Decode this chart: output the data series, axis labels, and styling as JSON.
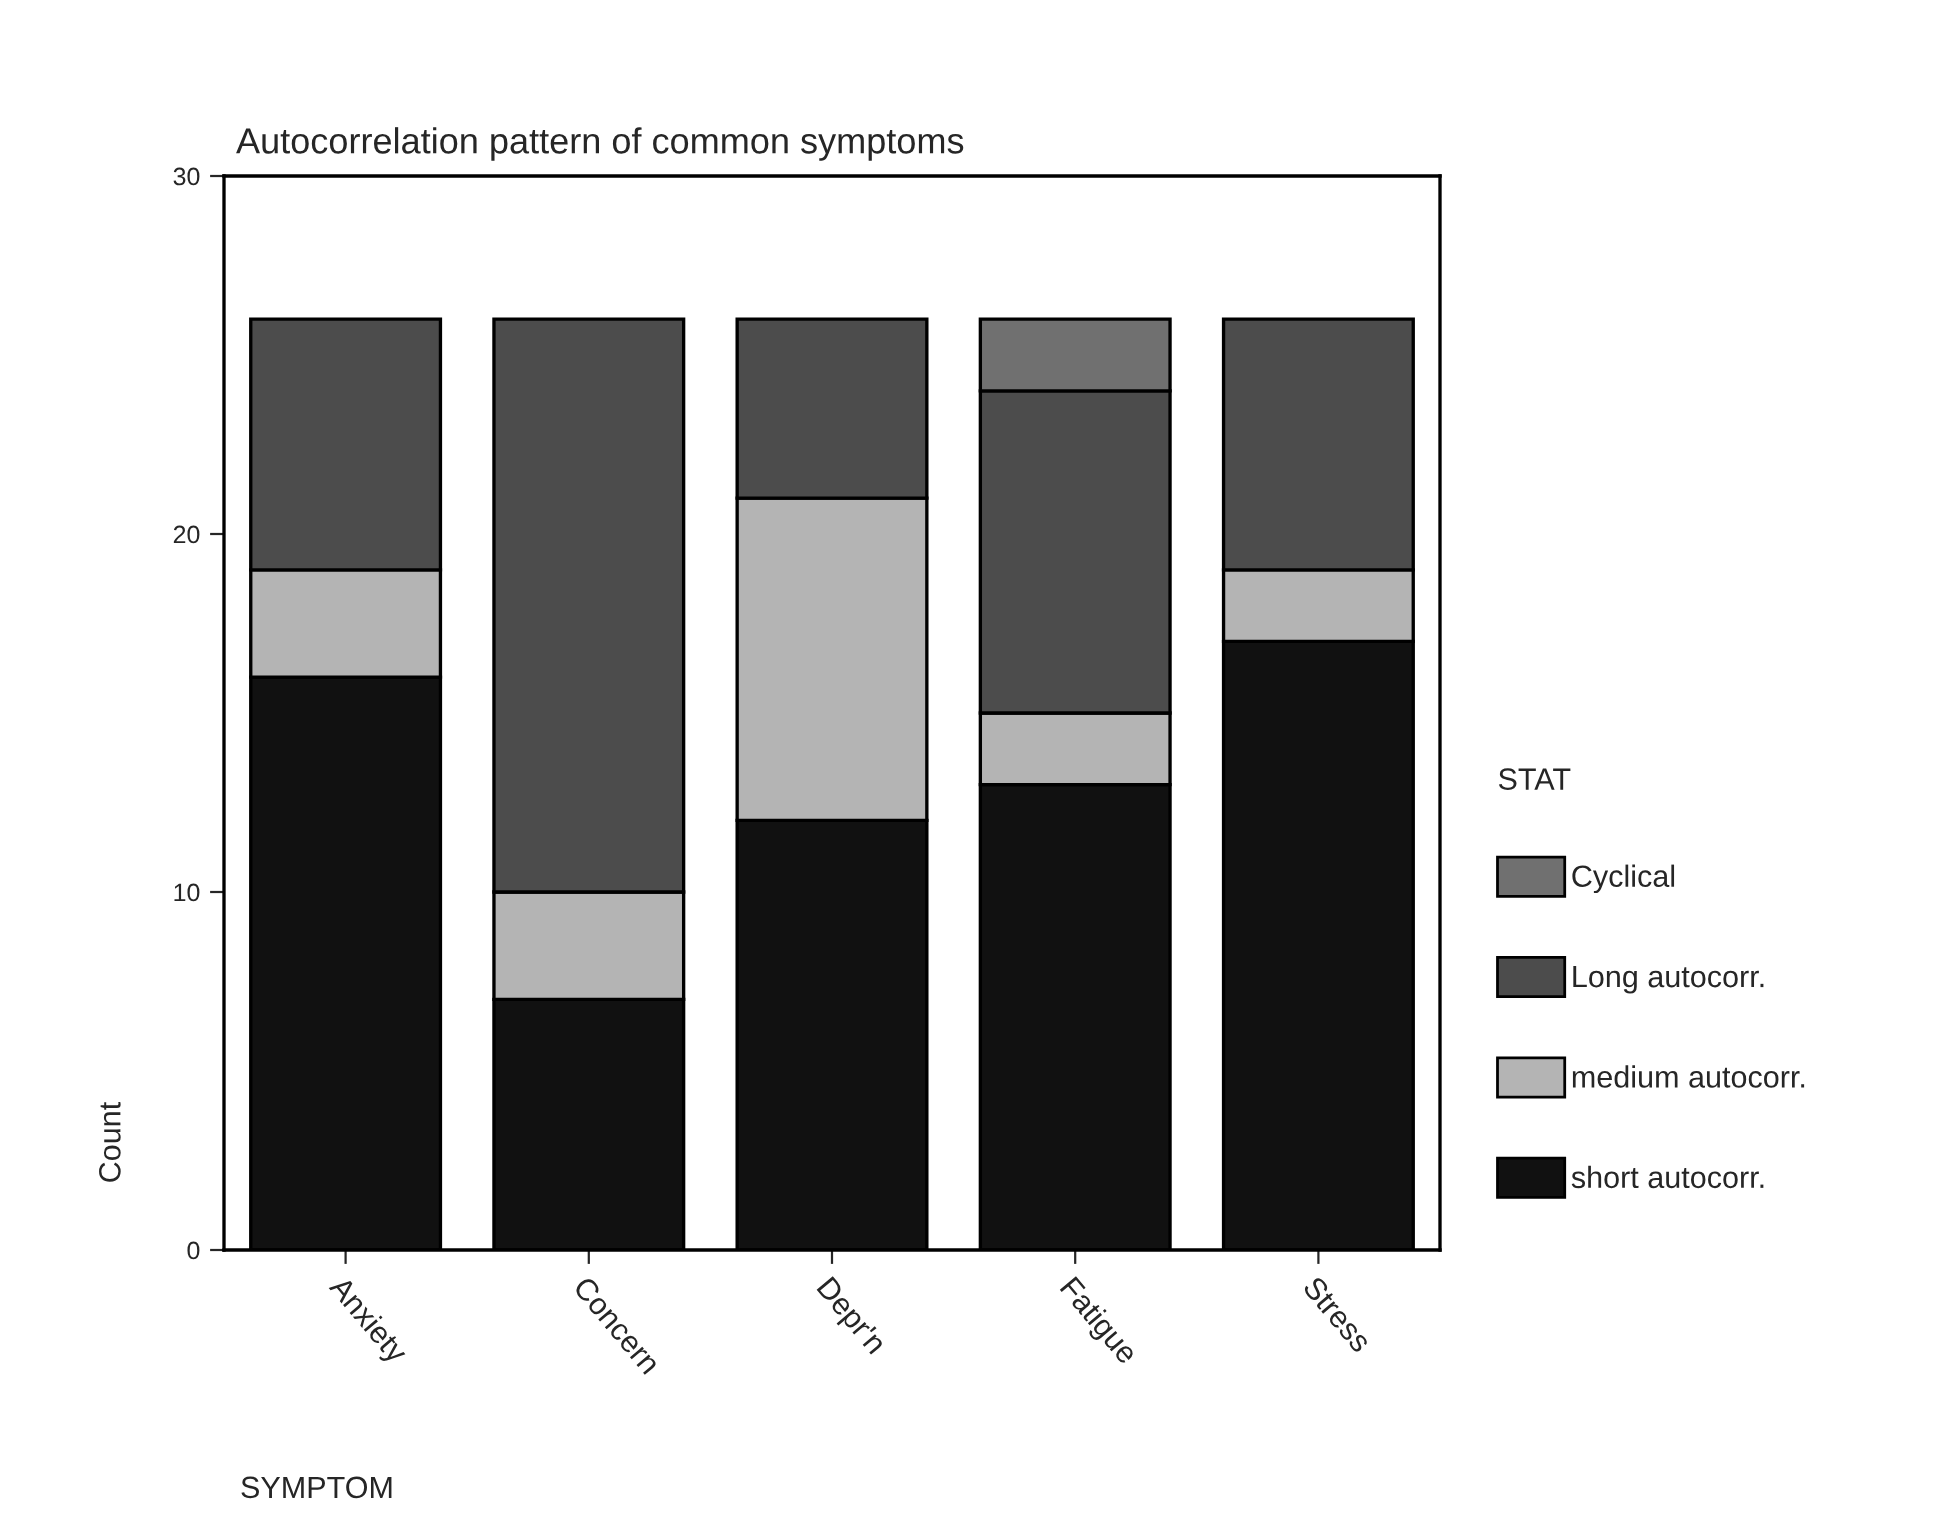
{
  "chart_data": {
    "type": "bar",
    "title": "Autocorrelation pattern of common symptoms",
    "xlabel": "SYMPTOM",
    "ylabel": "Count",
    "legend_title": "STAT",
    "categories": [
      "Anxiety",
      "Concern",
      "Depr'n",
      "Fatigue",
      "Stress"
    ],
    "stacked": true,
    "ylim": [
      0,
      30
    ],
    "yticks": [
      0,
      10,
      20,
      30
    ],
    "grid": false,
    "legend": "right",
    "series": [
      {
        "name": "short autocorr.",
        "color": "#111111",
        "values": [
          16,
          7,
          12,
          13,
          17
        ]
      },
      {
        "name": "medium autocorr.",
        "color": "#b4b4b4",
        "values": [
          3,
          3,
          9,
          2,
          2
        ]
      },
      {
        "name": "Long autocorr.",
        "color": "#4c4c4c",
        "values": [
          7,
          16,
          5,
          9,
          7
        ]
      },
      {
        "name": "Cyclical",
        "color": "#707070",
        "values": [
          0,
          0,
          0,
          2,
          0
        ]
      }
    ]
  }
}
